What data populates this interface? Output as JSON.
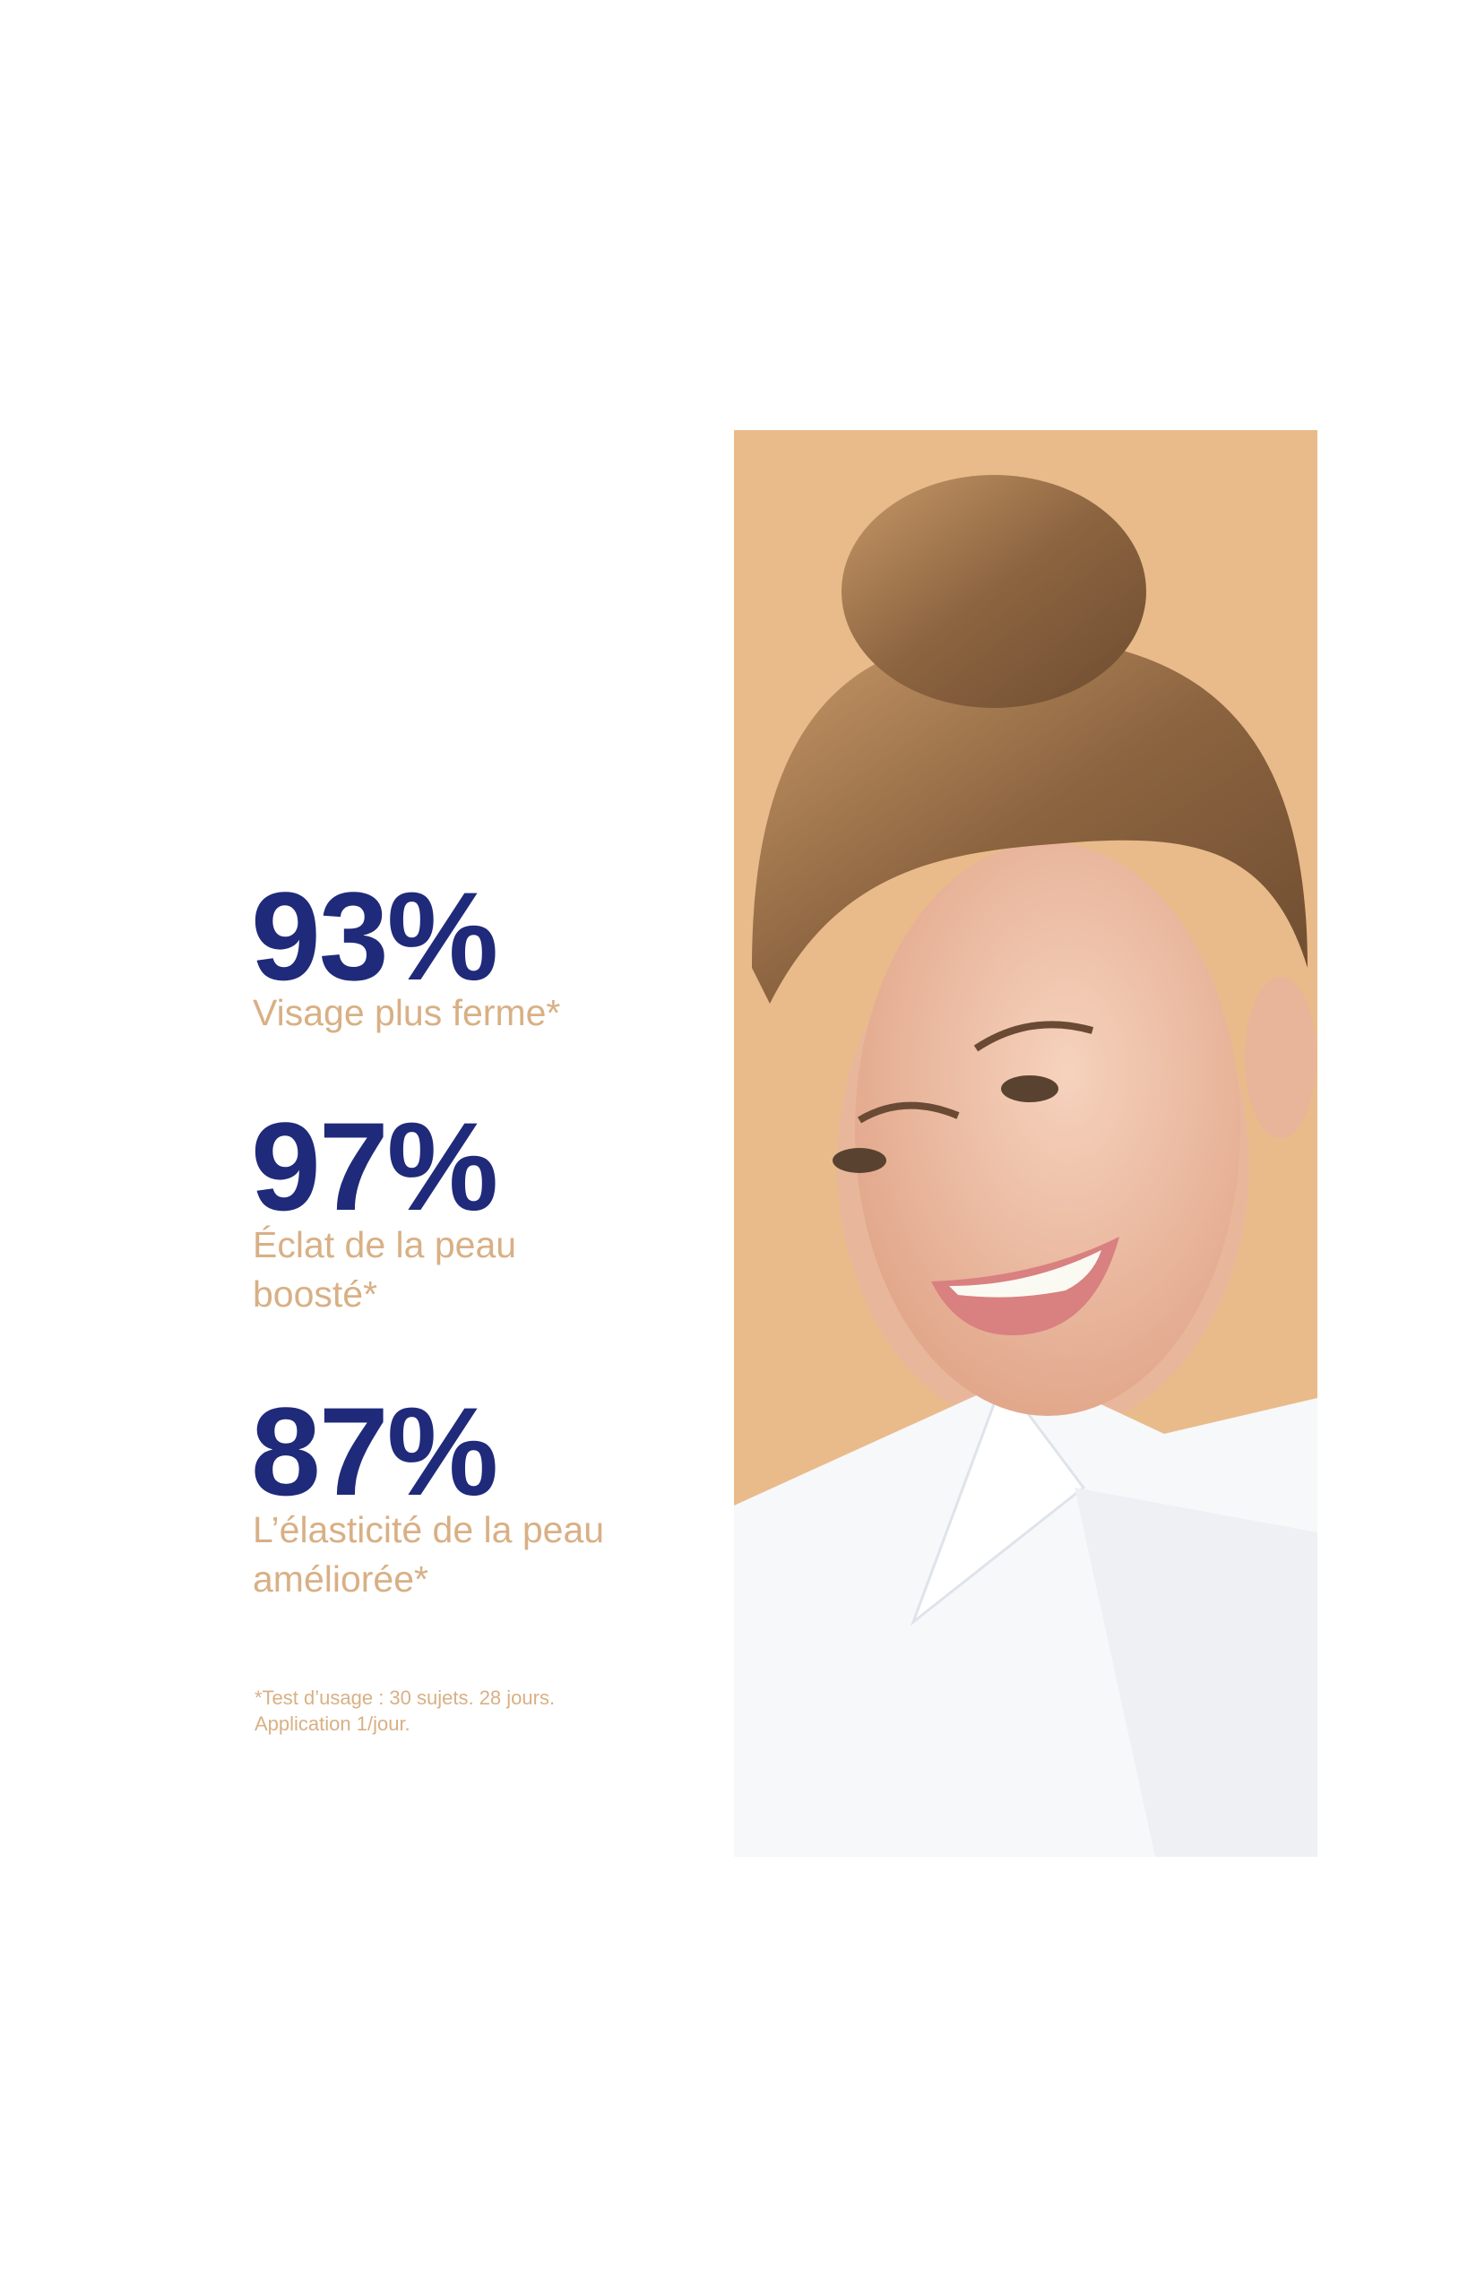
{
  "colors": {
    "accent_navy": "#1f2a7a",
    "label_tan": "#d8b085",
    "photo_background": "#e9bb8a"
  },
  "stats": [
    {
      "value": "93%",
      "label_lines": [
        "Visage plus ferme*"
      ]
    },
    {
      "value": "97%",
      "label_lines": [
        "Éclat de la peau",
        "boosté*"
      ]
    },
    {
      "value": "87%",
      "label_lines": [
        "L’élasticité de la peau",
        "améliorée*"
      ]
    }
  ],
  "footnote": {
    "lines": [
      "*Test d’usage : 30 sujets. 28 jours.",
      "Application 1/jour."
    ]
  },
  "photo": {
    "subject": "smiling woman with hair bun in white shirt"
  }
}
